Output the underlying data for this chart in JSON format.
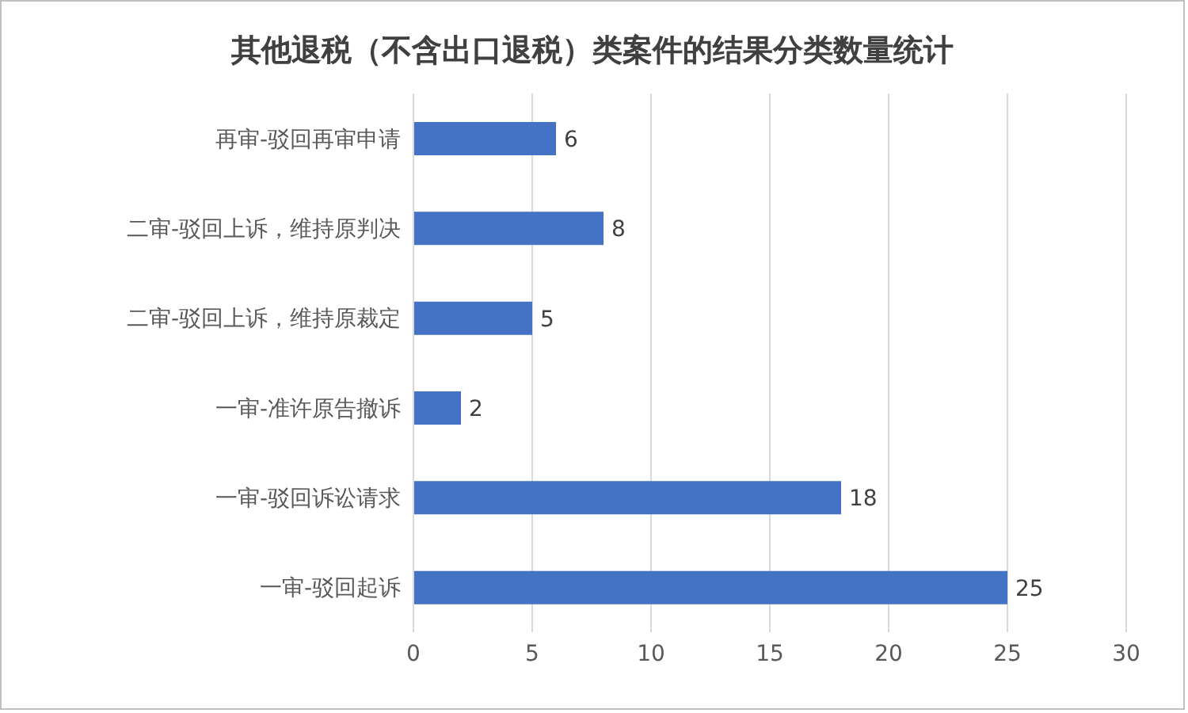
{
  "chart_data": {
    "type": "bar",
    "orientation": "horizontal",
    "title": "其他退税（不含出口退税）类案件的结果分类数量统计",
    "categories": [
      "再审-驳回再审申请",
      "二审-驳回上诉，维持原判决",
      "二审-驳回上诉，维持原裁定",
      "一审-准许原告撤诉",
      "一审-驳回诉讼请求",
      "一审-驳回起诉"
    ],
    "values": [
      6,
      8,
      5,
      2,
      18,
      25
    ],
    "color": "#4472c4",
    "xlim": [
      0,
      30
    ],
    "xticks": [
      0,
      5,
      10,
      15,
      20,
      25,
      30
    ],
    "grid": "x",
    "data_labels": true
  }
}
